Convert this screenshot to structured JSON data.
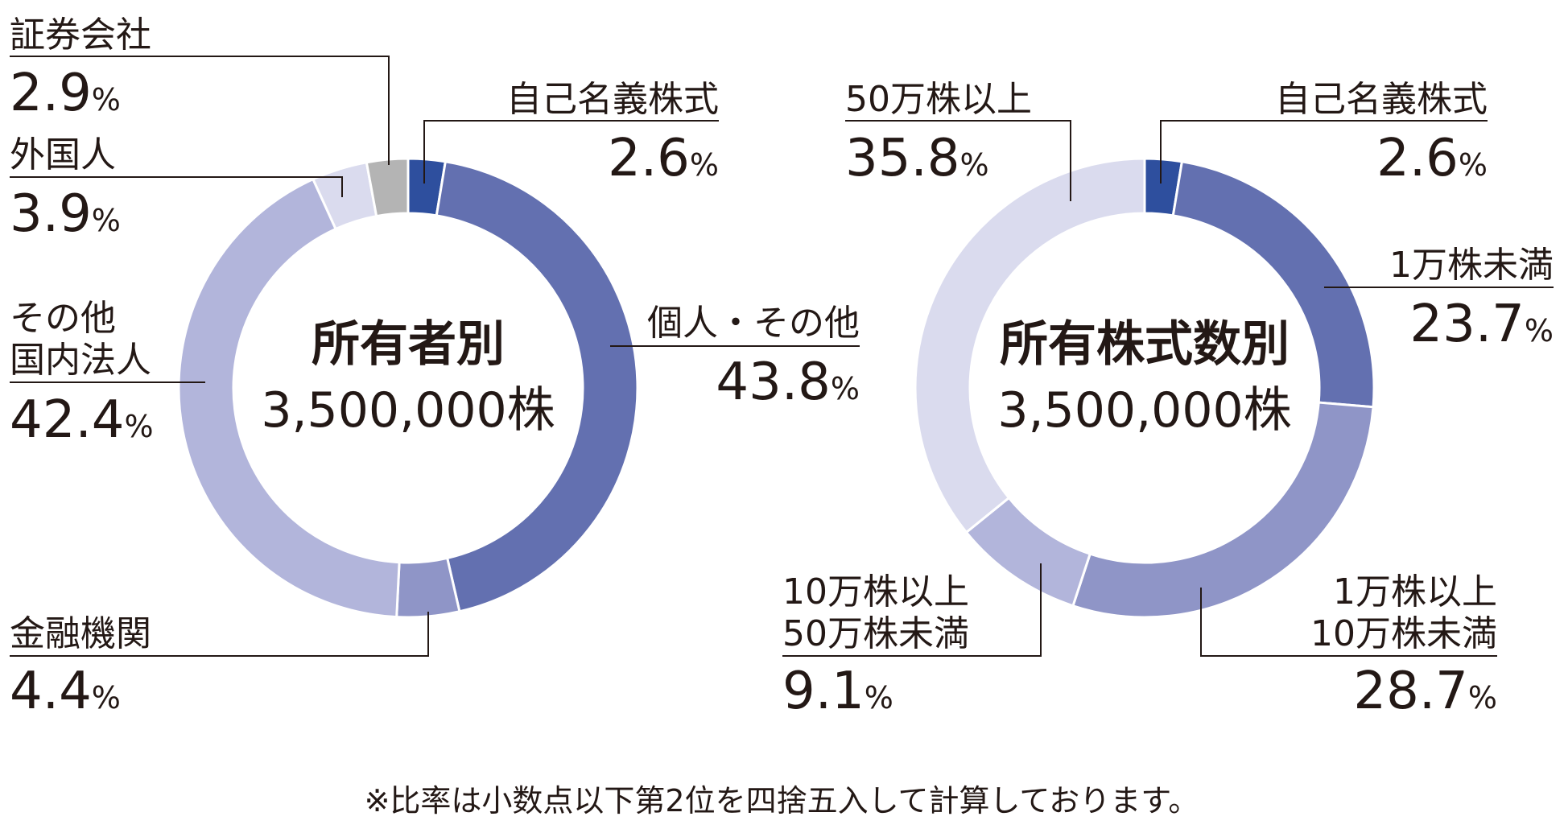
{
  "chart_data": [
    {
      "type": "pie",
      "variant": "donut",
      "center_title": "所有者別",
      "center_total": "3,500,000株",
      "slices": [
        {
          "label": "自己名義株式",
          "value": 2.6,
          "color": "#2E4F9E"
        },
        {
          "label": "個人・その他",
          "value": 43.8,
          "color": "#6370B0"
        },
        {
          "label": "金融機関",
          "value": 4.4,
          "color": "#8F95C7"
        },
        {
          "label": "その他国内法人",
          "value": 42.4,
          "color": "#B2B5DB"
        },
        {
          "label": "外国人",
          "value": 3.9,
          "color": "#DADBEE"
        },
        {
          "label": "証券会社",
          "value": 2.9,
          "color": "#B4B4B4"
        }
      ]
    },
    {
      "type": "pie",
      "variant": "donut",
      "center_title": "所有株式数別",
      "center_total": "3,500,000株",
      "slices": [
        {
          "label": "自己名義株式",
          "value": 2.6,
          "color": "#2E4F9E"
        },
        {
          "label": "1万株未満",
          "value": 23.7,
          "color": "#6370B0"
        },
        {
          "label": "1万株以上10万株未満",
          "value": 28.7,
          "color": "#8F95C7"
        },
        {
          "label": "10万株以上50万株未満",
          "value": 9.1,
          "color": "#B2B5DB"
        },
        {
          "label": "50万株以上",
          "value": 35.8,
          "color": "#DADBEE"
        }
      ]
    }
  ],
  "labels": {
    "left": {
      "treasury": {
        "name": "自己名義株式",
        "num": "2.6"
      },
      "individual": {
        "name": "個人・その他",
        "num": "43.8"
      },
      "financial": {
        "name": "金融機関",
        "num": "4.4"
      },
      "domestic": {
        "name1": "その他",
        "name2": "国内法人",
        "num": "42.4"
      },
      "foreign": {
        "name": "外国人",
        "num": "3.9"
      },
      "securities": {
        "name": "証券会社",
        "num": "2.9"
      }
    },
    "right": {
      "treasury": {
        "name": "自己名義株式",
        "num": "2.6"
      },
      "under10k": {
        "name": "1万株未満",
        "num": "23.7"
      },
      "10k_100k": {
        "name1": "1万株以上",
        "name2": "10万株未満",
        "num": "28.7"
      },
      "100k_500k": {
        "name1": "10万株以上",
        "name2": "50万株未満",
        "num": "9.1"
      },
      "over500k": {
        "name": "50万株以上",
        "num": "35.8"
      }
    },
    "percent_sign": "%"
  },
  "footnote": "※比率は小数点以下第2位を四捨五入して計算しております。"
}
